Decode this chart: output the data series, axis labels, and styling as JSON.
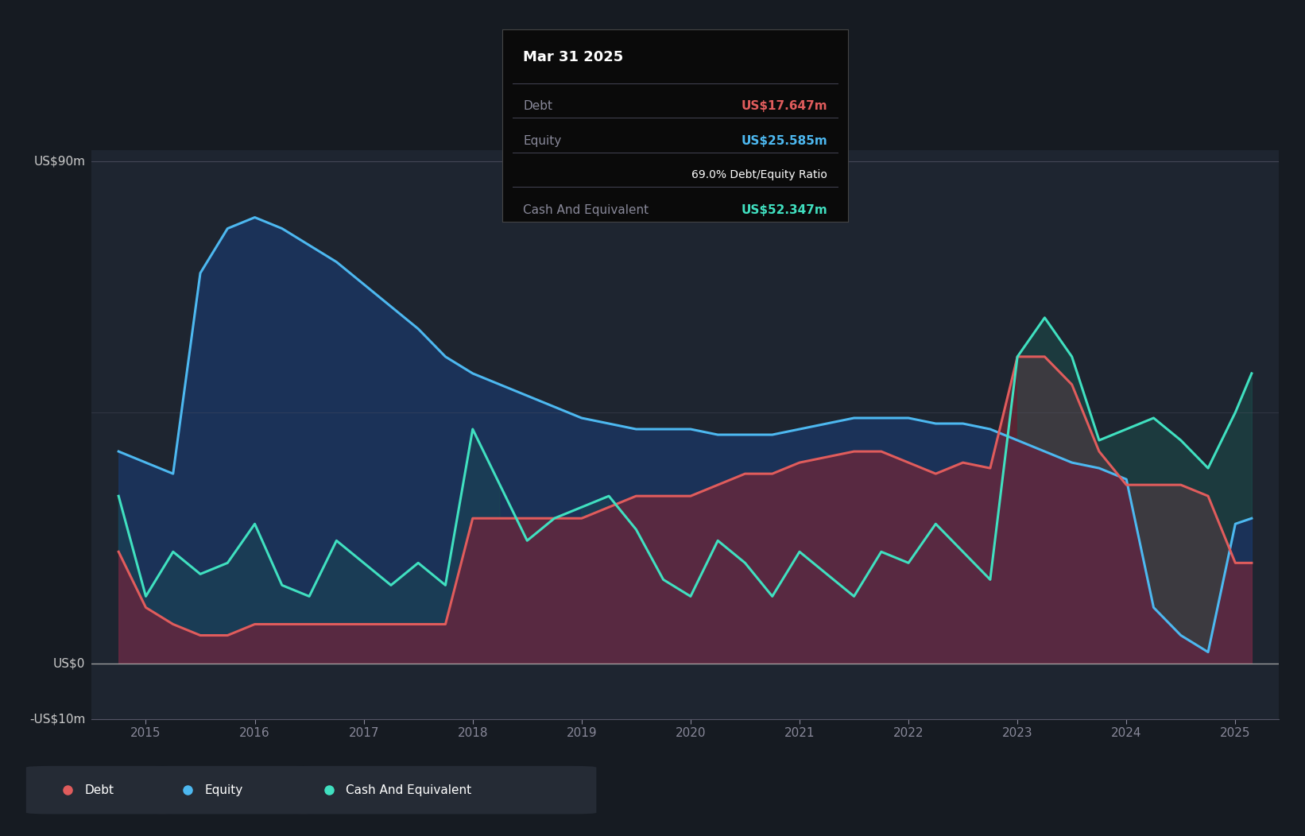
{
  "bg_color": "#161b22",
  "plot_bg_color": "#1e2530",
  "debt_color": "#e05c5c",
  "equity_color": "#4db8f0",
  "cash_color": "#40e0c0",
  "equity_fill": "#1a3a6e",
  "debt_fill": "#7a2535",
  "cash_fill": "#1a5550",
  "y_max": 90,
  "y_min": -10,
  "x_ticks": [
    2015,
    2016,
    2017,
    2018,
    2019,
    2020,
    2021,
    2022,
    2023,
    2024,
    2025
  ],
  "tooltip_date": "Mar 31 2025",
  "tooltip_debt_label": "Debt",
  "tooltip_debt_value": "US$17.647m",
  "tooltip_equity_label": "Equity",
  "tooltip_equity_value": "US$25.585m",
  "tooltip_ratio": "69.0% Debt/Equity Ratio",
  "tooltip_cash_label": "Cash And Equivalent",
  "tooltip_cash_value": "US$52.347m",
  "ylabel_top": "US$90m",
  "ylabel_zero": "US$0",
  "ylabel_neg": "-US$10m",
  "legend_items": [
    {
      "label": "Debt",
      "color": "#e05c5c"
    },
    {
      "label": "Equity",
      "color": "#4db8f0"
    },
    {
      "label": "Cash And Equivalent",
      "color": "#40e0c0"
    }
  ],
  "dates": [
    2014.75,
    2015.0,
    2015.25,
    2015.5,
    2015.75,
    2016.0,
    2016.25,
    2016.5,
    2016.75,
    2017.0,
    2017.25,
    2017.5,
    2017.75,
    2018.0,
    2018.25,
    2018.5,
    2018.75,
    2019.0,
    2019.25,
    2019.5,
    2019.75,
    2020.0,
    2020.25,
    2020.5,
    2020.75,
    2021.0,
    2021.25,
    2021.5,
    2021.75,
    2022.0,
    2022.25,
    2022.5,
    2022.75,
    2023.0,
    2023.25,
    2023.5,
    2023.75,
    2024.0,
    2024.25,
    2024.5,
    2024.75,
    2025.0,
    2025.15
  ],
  "equity": [
    38,
    36,
    34,
    70,
    78,
    80,
    78,
    75,
    72,
    68,
    64,
    60,
    55,
    52,
    50,
    48,
    46,
    44,
    43,
    42,
    42,
    42,
    41,
    41,
    41,
    42,
    43,
    44,
    44,
    44,
    43,
    43,
    42,
    40,
    38,
    36,
    35,
    33,
    10,
    5,
    2,
    25,
    26
  ],
  "debt": [
    20,
    10,
    7,
    5,
    5,
    7,
    7,
    7,
    7,
    7,
    7,
    7,
    7,
    26,
    26,
    26,
    26,
    26,
    28,
    30,
    30,
    30,
    32,
    34,
    34,
    36,
    37,
    38,
    38,
    36,
    34,
    36,
    35,
    55,
    55,
    50,
    38,
    32,
    32,
    32,
    30,
    18,
    18
  ],
  "cash": [
    30,
    12,
    20,
    16,
    18,
    25,
    14,
    12,
    22,
    18,
    14,
    18,
    14,
    42,
    32,
    22,
    26,
    28,
    30,
    24,
    15,
    12,
    22,
    18,
    12,
    20,
    16,
    12,
    20,
    18,
    25,
    20,
    15,
    55,
    62,
    55,
    40,
    42,
    44,
    40,
    35,
    45,
    52
  ]
}
